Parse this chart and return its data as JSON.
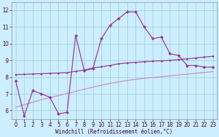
{
  "x": [
    0,
    1,
    2,
    3,
    4,
    5,
    6,
    7,
    8,
    9,
    10,
    11,
    12,
    13,
    14,
    15,
    16,
    17,
    18,
    19,
    20,
    21,
    22,
    23
  ],
  "line1": [
    7.8,
    5.7,
    7.2,
    7.0,
    6.8,
    5.8,
    5.9,
    10.5,
    8.4,
    8.5,
    10.3,
    11.1,
    11.5,
    11.9,
    11.9,
    11.0,
    10.3,
    10.4,
    9.4,
    9.3,
    8.7,
    8.7,
    8.6,
    8.6
  ],
  "line2": [
    8.15,
    8.17,
    8.19,
    8.21,
    8.23,
    8.25,
    8.27,
    8.35,
    8.42,
    8.55,
    8.62,
    8.7,
    8.8,
    8.85,
    8.88,
    8.92,
    8.96,
    8.98,
    9.0,
    9.05,
    9.1,
    9.15,
    9.2,
    9.25
  ],
  "line3": [
    6.2,
    6.35,
    6.5,
    6.65,
    6.78,
    6.9,
    7.02,
    7.15,
    7.28,
    7.4,
    7.52,
    7.62,
    7.72,
    7.8,
    7.87,
    7.93,
    7.98,
    8.03,
    8.08,
    8.13,
    8.18,
    8.23,
    8.28,
    8.33
  ],
  "line_color1": "#993399",
  "line_color2": "#993399",
  "line_color3": "#cc88cc",
  "bg_color": "#cceeff",
  "grid_color": "#99cccc",
  "xlabel": "Windchill (Refroidissement éolien,°C)",
  "ylim": [
    5.5,
    12.5
  ],
  "xlim": [
    -0.5,
    23.5
  ],
  "yticks": [
    6,
    7,
    8,
    9,
    10,
    11,
    12
  ],
  "xticks": [
    0,
    1,
    2,
    3,
    4,
    5,
    6,
    7,
    8,
    9,
    10,
    11,
    12,
    13,
    14,
    15,
    16,
    17,
    18,
    19,
    20,
    21,
    22,
    23
  ],
  "tick_fontsize": 5.5,
  "xlabel_fontsize": 5.5
}
